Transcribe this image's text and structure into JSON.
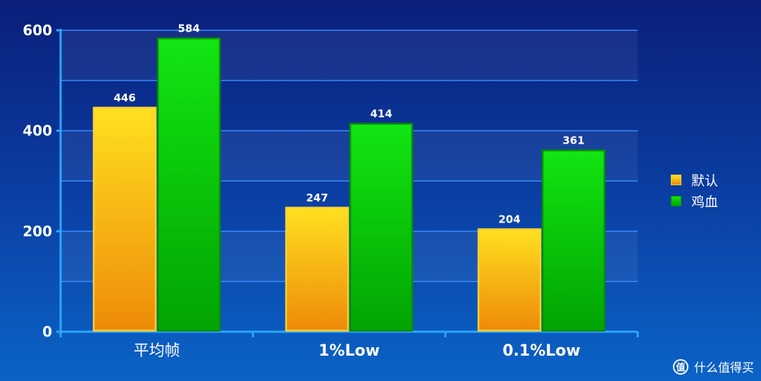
{
  "chart_data": {
    "type": "bar",
    "categories": [
      "平均帧",
      "1%Low",
      "0.1%Low"
    ],
    "series": [
      {
        "name": "默认",
        "values": [
          446,
          247,
          204
        ],
        "color": "#f5b514"
      },
      {
        "name": "鸡血",
        "values": [
          584,
          414,
          361
        ],
        "color": "#10c010"
      }
    ],
    "ylim": [
      0,
      600
    ],
    "yticks": [
      0,
      200,
      400,
      600
    ],
    "grid": true,
    "legend": "right",
    "title": "",
    "xlabel": "",
    "ylabel": ""
  },
  "watermark": {
    "text": "什么值得买",
    "icon_glyph": "值"
  },
  "colors": {
    "background_top": "#0a1f7a",
    "background_bottom": "#0b63c6",
    "axis": "#2aa8ff",
    "gridline": "#3a8bff"
  }
}
